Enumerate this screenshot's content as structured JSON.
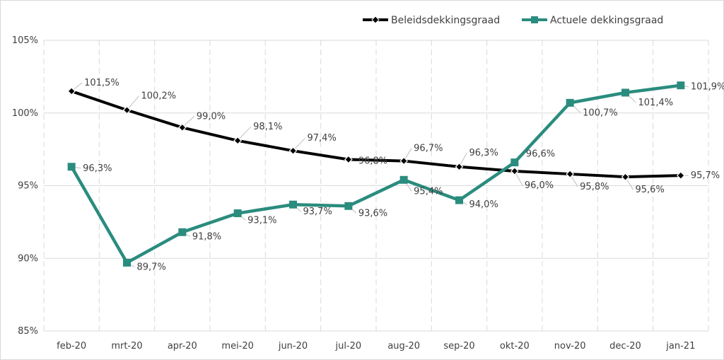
{
  "chart_data": {
    "type": "line",
    "categories": [
      "feb-20",
      "mrt-20",
      "apr-20",
      "mei-20",
      "jun-20",
      "jul-20",
      "aug-20",
      "sep-20",
      "okt-20",
      "nov-20",
      "dec-20",
      "jan-21"
    ],
    "ylim": [
      85,
      105
    ],
    "yticks": [
      85,
      90,
      95,
      100,
      105
    ],
    "ytick_labels": [
      "85%",
      "90%",
      "95%",
      "100%",
      "105%"
    ],
    "grid": "vertical dashed + horizontal solid",
    "legend": "top-right",
    "series": [
      {
        "name": "Beleidsdekkingsgraad",
        "color": "#000000",
        "marker": "diamond",
        "values": [
          101.5,
          100.2,
          99.0,
          98.1,
          97.4,
          96.8,
          96.7,
          96.3,
          96.0,
          95.8,
          95.6,
          95.7
        ],
        "labels": [
          "101,5%",
          "100,2%",
          "99,0%",
          "98,1%",
          "97,4%",
          "96,8%",
          "96,7%",
          "96,3%",
          "96,0%",
          "95,8%",
          "95,6%",
          "95,7%"
        ]
      },
      {
        "name": "Actuele dekkingsgraad",
        "color": "#2a8c7e",
        "marker": "square",
        "values": [
          96.3,
          89.7,
          91.8,
          93.1,
          93.7,
          93.6,
          95.4,
          94.0,
          96.6,
          100.7,
          101.4,
          101.9
        ],
        "labels": [
          "96,3%",
          "89,7%",
          "91,8%",
          "93,1%",
          "93,7%",
          "93,6%",
          "95,4%",
          "94,0%",
          "96,6%",
          "100,7%",
          "101,4%",
          "101,9%"
        ]
      }
    ]
  }
}
